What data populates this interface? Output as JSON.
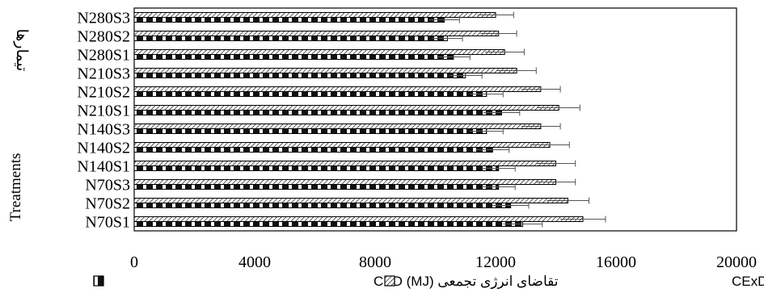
{
  "chart_data": {
    "type": "bar",
    "orientation": "horizontal",
    "categories": [
      "N280S3",
      "N280S2",
      "N280S1",
      "N210S3",
      "N210S2",
      "N210S1",
      "N140S3",
      "N140S2",
      "N140S1",
      "N70S3",
      "N70S2",
      "N70S1"
    ],
    "series": [
      {
        "name": "تقاضای اکسرژی تجمعی (CExD (MJ",
        "values": [
          12000,
          12100,
          12300,
          12700,
          13500,
          14100,
          13500,
          13800,
          14000,
          14000,
          14400,
          14900
        ],
        "errors": [
          600,
          600,
          650,
          650,
          650,
          700,
          650,
          650,
          650,
          650,
          700,
          750
        ]
      },
      {
        "name": "تقاضای انرژی تجمعی (CED (MJ",
        "values": [
          10300,
          10400,
          10600,
          11000,
          11700,
          12200,
          11700,
          11900,
          12100,
          12100,
          12500,
          12900
        ],
        "errors": [
          500,
          500,
          550,
          550,
          550,
          600,
          550,
          550,
          550,
          550,
          600,
          650
        ]
      }
    ],
    "xlim": [
      0,
      20000
    ],
    "xticks": [
      "0",
      "4000",
      "8000",
      "12000",
      "16000",
      "20000"
    ],
    "ylabel_en": "Treatments",
    "ylabel_fa": "تیمارها",
    "legend_position": "bottom",
    "grid": false,
    "colors": {
      "axis": "#000000",
      "bar_fill": "#ffffff",
      "hatch": "#000000"
    }
  }
}
